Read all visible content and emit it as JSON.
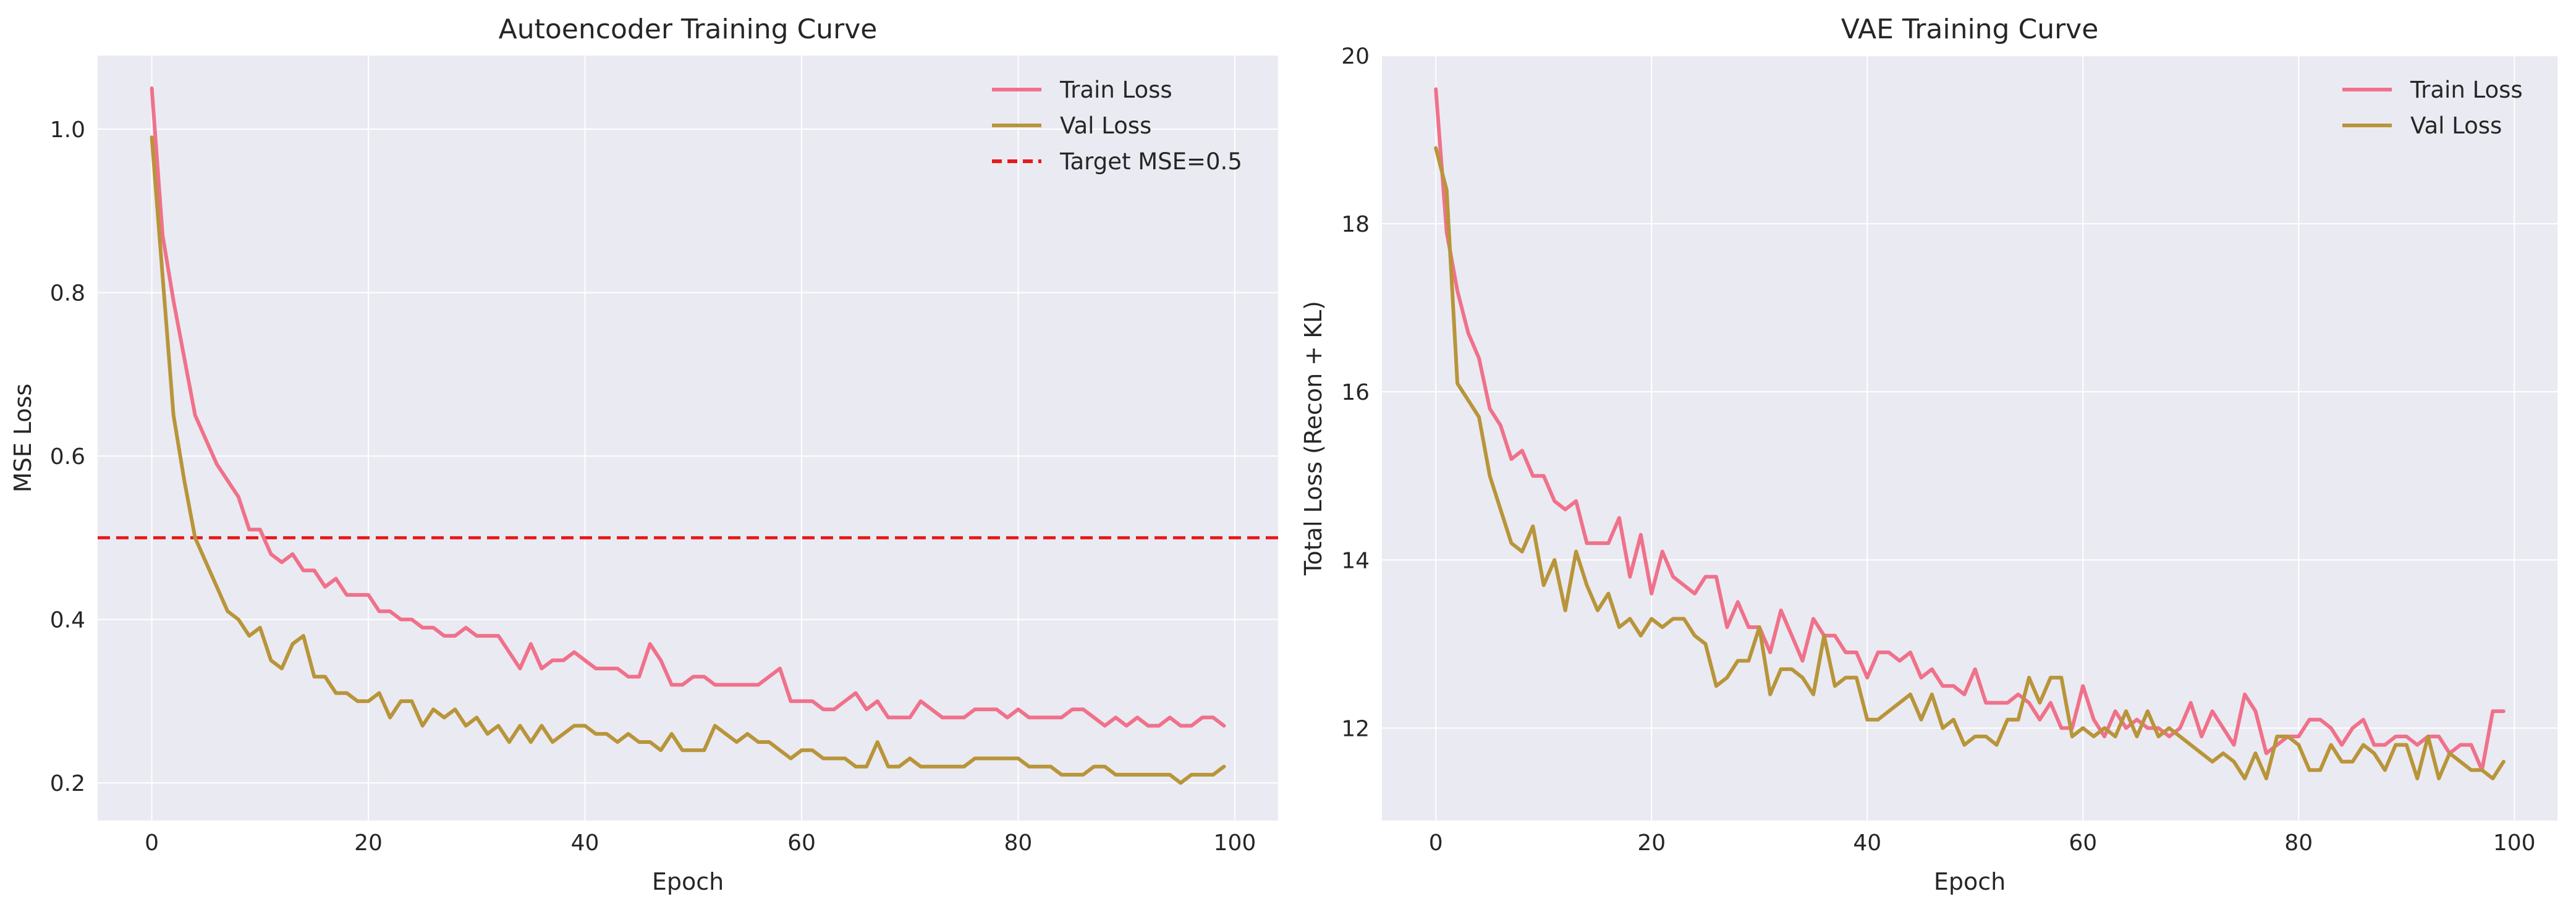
{
  "style": {
    "background": "#eaeaf2",
    "grid": "#ffffff",
    "train_color": "#f0718a",
    "val_color": "#b8953a",
    "target_color": "#e8191b"
  },
  "chart_data": [
    {
      "type": "line",
      "title": "Autoencoder Training Curve",
      "xlabel": "Epoch",
      "ylabel": "MSE Loss",
      "xlim": [
        -5,
        104
      ],
      "ylim": [
        0.154,
        1.09
      ],
      "xticks": [
        0,
        20,
        40,
        60,
        80,
        100
      ],
      "xtick_labels": [
        "0",
        "20",
        "40",
        "60",
        "80",
        "100"
      ],
      "yticks": [
        0.2,
        0.4,
        0.6,
        0.8,
        1.0
      ],
      "ytick_labels": [
        "0.2",
        "0.4",
        "0.6",
        "0.8",
        "1.0"
      ],
      "grid": true,
      "legend": "top-right",
      "hline": {
        "name": "Target MSE=0.5",
        "y": 0.5
      },
      "series": [
        {
          "name": "Train Loss",
          "color": "#f0718a",
          "values": [
            1.05,
            0.87,
            0.79,
            0.72,
            0.65,
            0.62,
            0.59,
            0.57,
            0.55,
            0.51,
            0.51,
            0.48,
            0.47,
            0.48,
            0.46,
            0.46,
            0.44,
            0.45,
            0.43,
            0.43,
            0.43,
            0.41,
            0.41,
            0.4,
            0.4,
            0.39,
            0.39,
            0.38,
            0.38,
            0.39,
            0.38,
            0.38,
            0.38,
            0.36,
            0.34,
            0.37,
            0.34,
            0.35,
            0.35,
            0.36,
            0.35,
            0.34,
            0.34,
            0.34,
            0.33,
            0.33,
            0.37,
            0.35,
            0.32,
            0.32,
            0.33,
            0.33,
            0.32,
            0.32,
            0.32,
            0.32,
            0.32,
            0.33,
            0.34,
            0.3,
            0.3,
            0.3,
            0.29,
            0.29,
            0.3,
            0.31,
            0.29,
            0.3,
            0.28,
            0.28,
            0.28,
            0.3,
            0.29,
            0.28,
            0.28,
            0.28,
            0.29,
            0.29,
            0.29,
            0.28,
            0.29,
            0.28,
            0.28,
            0.28,
            0.28,
            0.29,
            0.29,
            0.28,
            0.27,
            0.28,
            0.27,
            0.28,
            0.27,
            0.27,
            0.28,
            0.27,
            0.27,
            0.28,
            0.28,
            0.27
          ]
        },
        {
          "name": "Val Loss",
          "color": "#b8953a",
          "values": [
            0.99,
            0.82,
            0.65,
            0.57,
            0.5,
            0.47,
            0.44,
            0.41,
            0.4,
            0.38,
            0.39,
            0.35,
            0.34,
            0.37,
            0.38,
            0.33,
            0.33,
            0.31,
            0.31,
            0.3,
            0.3,
            0.31,
            0.28,
            0.3,
            0.3,
            0.27,
            0.29,
            0.28,
            0.29,
            0.27,
            0.28,
            0.26,
            0.27,
            0.25,
            0.27,
            0.25,
            0.27,
            0.25,
            0.26,
            0.27,
            0.27,
            0.26,
            0.26,
            0.25,
            0.26,
            0.25,
            0.25,
            0.24,
            0.26,
            0.24,
            0.24,
            0.24,
            0.27,
            0.26,
            0.25,
            0.26,
            0.25,
            0.25,
            0.24,
            0.23,
            0.24,
            0.24,
            0.23,
            0.23,
            0.23,
            0.22,
            0.22,
            0.25,
            0.22,
            0.22,
            0.23,
            0.22,
            0.22,
            0.22,
            0.22,
            0.22,
            0.23,
            0.23,
            0.23,
            0.23,
            0.23,
            0.22,
            0.22,
            0.22,
            0.21,
            0.21,
            0.21,
            0.22,
            0.22,
            0.21,
            0.21,
            0.21,
            0.21,
            0.21,
            0.21,
            0.2,
            0.21,
            0.21,
            0.21,
            0.22
          ]
        }
      ]
    },
    {
      "type": "line",
      "title": "VAE Training Curve",
      "xlabel": "Epoch",
      "ylabel": "Total Loss (Recon + KL)",
      "xlim": [
        -5,
        104
      ],
      "ylim": [
        10.9,
        20.0
      ],
      "xticks": [
        0,
        20,
        40,
        60,
        80,
        100
      ],
      "xtick_labels": [
        "0",
        "20",
        "40",
        "60",
        "80",
        "100"
      ],
      "yticks": [
        12,
        14,
        16,
        18,
        20
      ],
      "ytick_labels": [
        "12",
        "14",
        "16",
        "18",
        "20"
      ],
      "grid": true,
      "legend": "top-right",
      "series": [
        {
          "name": "Train Loss",
          "color": "#f0718a",
          "values": [
            19.6,
            17.9,
            17.2,
            16.7,
            16.4,
            15.8,
            15.6,
            15.2,
            15.3,
            15.0,
            15.0,
            14.7,
            14.6,
            14.7,
            14.2,
            14.2,
            14.2,
            14.5,
            13.8,
            14.3,
            13.6,
            14.1,
            13.8,
            13.7,
            13.6,
            13.8,
            13.8,
            13.2,
            13.5,
            13.2,
            13.2,
            12.9,
            13.4,
            13.1,
            12.8,
            13.3,
            13.1,
            13.1,
            12.9,
            12.9,
            12.6,
            12.9,
            12.9,
            12.8,
            12.9,
            12.6,
            12.7,
            12.5,
            12.5,
            12.4,
            12.7,
            12.3,
            12.3,
            12.3,
            12.4,
            12.3,
            12.1,
            12.3,
            12.0,
            12.0,
            12.5,
            12.1,
            11.9,
            12.2,
            12.0,
            12.1,
            12.0,
            12.0,
            11.9,
            12.0,
            12.3,
            11.9,
            12.2,
            12.0,
            11.8,
            12.4,
            12.2,
            11.7,
            11.8,
            11.9,
            11.9,
            12.1,
            12.1,
            12.0,
            11.8,
            12.0,
            12.1,
            11.8,
            11.8,
            11.9,
            11.9,
            11.8,
            11.9,
            11.9,
            11.7,
            11.8,
            11.8,
            11.5,
            12.2,
            12.2
          ]
        },
        {
          "name": "Val Loss",
          "color": "#b8953a",
          "values": [
            18.9,
            18.4,
            16.1,
            15.9,
            15.7,
            15.0,
            14.6,
            14.2,
            14.1,
            14.4,
            13.7,
            14.0,
            13.4,
            14.1,
            13.7,
            13.4,
            13.6,
            13.2,
            13.3,
            13.1,
            13.3,
            13.2,
            13.3,
            13.3,
            13.1,
            13.0,
            12.5,
            12.6,
            12.8,
            12.8,
            13.2,
            12.4,
            12.7,
            12.7,
            12.6,
            12.4,
            13.1,
            12.5,
            12.6,
            12.6,
            12.1,
            12.1,
            12.2,
            12.3,
            12.4,
            12.1,
            12.4,
            12.0,
            12.1,
            11.8,
            11.9,
            11.9,
            11.8,
            12.1,
            12.1,
            12.6,
            12.3,
            12.6,
            12.6,
            11.9,
            12.0,
            11.9,
            12.0,
            11.9,
            12.2,
            11.9,
            12.2,
            11.9,
            12.0,
            11.9,
            11.8,
            11.7,
            11.6,
            11.7,
            11.6,
            11.4,
            11.7,
            11.4,
            11.9,
            11.9,
            11.8,
            11.5,
            11.5,
            11.8,
            11.6,
            11.6,
            11.8,
            11.7,
            11.5,
            11.8,
            11.8,
            11.4,
            11.9,
            11.4,
            11.7,
            11.6,
            11.5,
            11.5,
            11.4,
            11.6
          ]
        }
      ]
    }
  ]
}
